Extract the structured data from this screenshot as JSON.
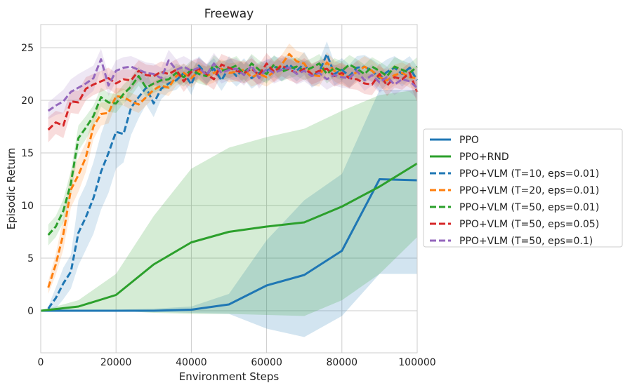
{
  "chart_data": {
    "type": "line",
    "title": "Freeway",
    "xlabel": "Environment Steps",
    "ylabel": "Episodic Return",
    "xlim": [
      0,
      100000
    ],
    "ylim": [
      -4,
      27.2
    ],
    "xticks": [
      0,
      20000,
      40000,
      60000,
      80000,
      100000
    ],
    "xtick_labels": [
      "0",
      "20000",
      "40000",
      "60000",
      "80000",
      "100000"
    ],
    "yticks": [
      0,
      5,
      10,
      15,
      20,
      25
    ],
    "ytick_labels": [
      "0",
      "5",
      "10",
      "15",
      "20",
      "25"
    ],
    "grid": true,
    "legend_position": "right, outside plot",
    "series": [
      {
        "name": "PPO",
        "color": "#1f77b4",
        "dash": "solid",
        "x": [
          0,
          10000,
          20000,
          30000,
          40000,
          50000,
          60000,
          70000,
          80000,
          90000,
          100000
        ],
        "y": [
          0,
          0,
          0,
          0,
          0.1,
          0.6,
          2.4,
          3.4,
          5.7,
          12.5,
          12.4
        ],
        "lower": [
          0,
          0,
          0,
          -0.1,
          -0.2,
          -0.3,
          -1.7,
          -2.5,
          -0.5,
          3.5,
          3.5
        ],
        "upper": [
          0,
          0.1,
          0.1,
          0.2,
          0.4,
          1.6,
          6.7,
          10.5,
          13.0,
          21.0,
          21.0
        ]
      },
      {
        "name": "PPO+RND",
        "color": "#2ca02c",
        "dash": "solid",
        "x": [
          0,
          10000,
          20000,
          30000,
          40000,
          50000,
          60000,
          70000,
          80000,
          90000,
          100000
        ],
        "y": [
          0,
          0.4,
          1.5,
          4.4,
          6.5,
          7.5,
          8.0,
          8.4,
          9.9,
          11.8,
          14.0
        ],
        "lower": [
          0,
          0,
          0,
          -0.2,
          -0.3,
          -0.3,
          -0.4,
          -0.5,
          1.0,
          3.5,
          7.0
        ],
        "upper": [
          0,
          1.0,
          3.5,
          9.0,
          13.5,
          15.5,
          16.5,
          17.3,
          19.0,
          20.5,
          21.0
        ]
      },
      {
        "name": "PPO+VLM (T=10, eps=0.01)",
        "color": "#1f77b4",
        "dash": "dashed",
        "x": [
          2000,
          4000,
          6000,
          8000,
          10000,
          12000,
          14000,
          16000,
          18000,
          20000,
          22000,
          24000,
          26000,
          28000,
          30000,
          32000,
          34000,
          36000,
          38000,
          40000,
          42000,
          44000,
          46000,
          48000,
          50000,
          52000,
          54000,
          56000,
          58000,
          60000,
          62000,
          64000,
          66000,
          68000,
          70000,
          72000,
          74000,
          76000,
          78000,
          80000,
          82000,
          84000,
          86000,
          88000,
          90000,
          92000,
          94000,
          96000,
          98000,
          100000
        ],
        "y": [
          0.2,
          1.2,
          2.6,
          3.7,
          7.4,
          8.9,
          10.7,
          13.2,
          15.0,
          17.0,
          16.8,
          19.3,
          20.3,
          21.2,
          19.7,
          21.1,
          21.6,
          21.9,
          22.6,
          21.5,
          23.3,
          22.5,
          23.0,
          21.9,
          23.1,
          22.3,
          23.0,
          22.1,
          22.6,
          22.8,
          23.2,
          22.9,
          23.4,
          22.8,
          23.5,
          22.3,
          22.7,
          24.4,
          22.5,
          22.9,
          22.3,
          23.1,
          23.2,
          22.8,
          22.1,
          22.7,
          23.1,
          22.5,
          23.1,
          21.9
        ],
        "lower": [
          0.0,
          0.2,
          1.1,
          2.1,
          4.3,
          5.8,
          7.3,
          9.6,
          11.2,
          13.5,
          14.1,
          16.7,
          18.3,
          19.6,
          18.4,
          20.1,
          20.8,
          21.0,
          21.7,
          20.5,
          22.4,
          21.6,
          22.0,
          20.9,
          22.0,
          21.3,
          22.0,
          21.1,
          21.6,
          21.8,
          22.2,
          21.8,
          22.4,
          21.8,
          22.4,
          21.2,
          21.6,
          23.2,
          21.4,
          21.8,
          21.2,
          22.0,
          22.1,
          21.7,
          20.8,
          21.5,
          22.0,
          21.3,
          22.0,
          20.6
        ],
        "upper": [
          0.4,
          2.2,
          4.1,
          5.3,
          10.5,
          12.0,
          14.1,
          16.8,
          18.8,
          20.5,
          19.5,
          21.9,
          22.3,
          22.8,
          21.0,
          22.1,
          22.4,
          22.8,
          23.5,
          22.5,
          24.2,
          23.4,
          24.0,
          22.9,
          24.2,
          23.3,
          24.0,
          23.1,
          23.6,
          23.8,
          24.2,
          24.0,
          24.4,
          23.8,
          24.6,
          23.4,
          23.8,
          25.6,
          23.6,
          24.0,
          23.4,
          24.2,
          24.3,
          23.9,
          23.4,
          23.9,
          24.2,
          23.7,
          24.2,
          23.2
        ]
      },
      {
        "name": "PPO+VLM (T=20, eps=0.01)",
        "color": "#ff7f0e",
        "dash": "dashed",
        "x": [
          2000,
          4000,
          6000,
          8000,
          10000,
          12000,
          14000,
          16000,
          18000,
          20000,
          22000,
          24000,
          26000,
          28000,
          30000,
          32000,
          34000,
          36000,
          38000,
          40000,
          42000,
          44000,
          46000,
          48000,
          50000,
          52000,
          54000,
          56000,
          58000,
          60000,
          62000,
          64000,
          66000,
          68000,
          70000,
          72000,
          74000,
          76000,
          78000,
          80000,
          82000,
          84000,
          86000,
          88000,
          90000,
          92000,
          94000,
          96000,
          98000,
          100000
        ],
        "y": [
          2.2,
          4.4,
          7.3,
          11.5,
          12.9,
          14.6,
          17.5,
          18.7,
          18.8,
          20.4,
          20.3,
          19.9,
          19.6,
          20.3,
          21.0,
          21.4,
          21.2,
          22.3,
          22.6,
          22.1,
          22.8,
          22.3,
          22.6,
          23.0,
          22.6,
          22.7,
          22.9,
          22.2,
          22.5,
          22.2,
          22.7,
          23.4,
          24.4,
          23.7,
          23.5,
          22.4,
          22.3,
          23.6,
          22.8,
          22.4,
          22.2,
          22.7,
          23.2,
          22.8,
          22.2,
          21.9,
          22.4,
          22.6,
          22.2,
          22.1
        ],
        "lower": [
          1.6,
          3.4,
          5.8,
          9.8,
          11.3,
          13.2,
          16.3,
          17.6,
          17.8,
          19.6,
          19.5,
          19.1,
          18.8,
          19.5,
          20.2,
          20.6,
          20.4,
          21.4,
          21.7,
          21.2,
          21.9,
          21.4,
          21.7,
          22.1,
          21.7,
          21.8,
          22.0,
          21.3,
          21.6,
          21.3,
          21.8,
          22.5,
          23.4,
          22.7,
          22.5,
          21.4,
          21.3,
          22.6,
          21.8,
          21.4,
          21.2,
          21.7,
          22.2,
          21.8,
          21.2,
          20.9,
          21.4,
          21.6,
          21.2,
          21.0
        ],
        "upper": [
          2.8,
          5.4,
          8.8,
          13.2,
          14.5,
          16.0,
          18.7,
          19.8,
          19.8,
          21.2,
          21.1,
          20.7,
          20.4,
          21.1,
          21.8,
          22.2,
          22.0,
          23.2,
          23.5,
          23.0,
          23.7,
          23.2,
          23.5,
          23.9,
          23.5,
          23.6,
          23.8,
          23.1,
          23.4,
          23.1,
          23.6,
          24.3,
          25.4,
          24.7,
          24.5,
          23.4,
          23.3,
          24.6,
          23.8,
          23.4,
          23.2,
          23.7,
          24.2,
          23.8,
          23.2,
          22.9,
          23.4,
          23.6,
          23.2,
          23.2
        ]
      },
      {
        "name": "PPO+VLM (T=50, eps=0.01)",
        "color": "#2ca02c",
        "dash": "dashed",
        "x": [
          2000,
          4000,
          6000,
          8000,
          10000,
          12000,
          14000,
          16000,
          18000,
          20000,
          22000,
          24000,
          26000,
          28000,
          30000,
          32000,
          34000,
          36000,
          38000,
          40000,
          42000,
          44000,
          46000,
          48000,
          50000,
          52000,
          54000,
          56000,
          58000,
          60000,
          62000,
          64000,
          66000,
          68000,
          70000,
          72000,
          74000,
          76000,
          78000,
          80000,
          82000,
          84000,
          86000,
          88000,
          90000,
          92000,
          94000,
          96000,
          98000,
          100000
        ],
        "y": [
          7.2,
          8.0,
          9.5,
          12.1,
          16.4,
          17.4,
          18.5,
          20.3,
          19.8,
          19.7,
          20.6,
          21.3,
          22.3,
          21.2,
          21.6,
          21.9,
          22.0,
          22.6,
          22.2,
          22.9,
          22.5,
          22.3,
          23.4,
          22.8,
          23.0,
          23.3,
          22.5,
          23.5,
          22.9,
          22.5,
          23.4,
          22.7,
          23.0,
          23.2,
          22.8,
          23.1,
          23.5,
          22.5,
          23.1,
          22.8,
          23.4,
          23.0,
          22.5,
          23.2,
          22.8,
          22.3,
          23.2,
          22.9,
          22.6,
          23.2
        ],
        "lower": [
          6.2,
          7.0,
          8.4,
          10.9,
          15.2,
          16.3,
          17.5,
          19.4,
          18.9,
          18.8,
          19.7,
          20.4,
          21.4,
          20.3,
          20.7,
          21.0,
          21.1,
          21.7,
          21.3,
          22.0,
          21.6,
          21.4,
          22.5,
          21.9,
          22.1,
          22.4,
          21.6,
          22.6,
          22.0,
          21.6,
          22.5,
          21.8,
          22.1,
          22.3,
          21.9,
          22.2,
          22.6,
          21.6,
          22.2,
          21.9,
          22.5,
          22.1,
          21.6,
          22.3,
          21.9,
          21.4,
          22.3,
          22.0,
          21.7,
          22.3
        ],
        "upper": [
          8.2,
          9.0,
          10.6,
          13.3,
          17.6,
          18.5,
          19.5,
          21.2,
          20.7,
          20.6,
          21.5,
          22.2,
          23.2,
          22.1,
          22.5,
          22.8,
          22.9,
          23.5,
          23.1,
          23.8,
          23.4,
          23.2,
          24.3,
          23.7,
          23.9,
          24.2,
          23.4,
          24.4,
          23.8,
          23.4,
          24.3,
          23.6,
          23.9,
          24.1,
          23.7,
          24.0,
          24.4,
          23.4,
          24.0,
          23.7,
          24.3,
          23.9,
          23.4,
          24.1,
          23.7,
          23.2,
          24.1,
          23.8,
          23.5,
          24.1
        ]
      },
      {
        "name": "PPO+VLM (T=50, eps=0.05)",
        "color": "#d62728",
        "dash": "dashed",
        "x": [
          2000,
          4000,
          6000,
          8000,
          10000,
          12000,
          14000,
          16000,
          18000,
          20000,
          22000,
          24000,
          26000,
          28000,
          30000,
          32000,
          34000,
          36000,
          38000,
          40000,
          42000,
          44000,
          46000,
          48000,
          50000,
          52000,
          54000,
          56000,
          58000,
          60000,
          62000,
          64000,
          66000,
          68000,
          70000,
          72000,
          74000,
          76000,
          78000,
          80000,
          82000,
          84000,
          86000,
          88000,
          90000,
          92000,
          94000,
          96000,
          98000,
          100000
        ],
        "y": [
          17.2,
          17.9,
          17.6,
          19.9,
          19.8,
          21.1,
          21.5,
          21.8,
          22.1,
          21.6,
          22.0,
          21.9,
          22.8,
          22.4,
          22.3,
          22.7,
          22.5,
          22.9,
          21.8,
          22.7,
          23.0,
          22.5,
          22.0,
          23.4,
          23.1,
          22.8,
          22.6,
          23.0,
          22.4,
          23.5,
          22.7,
          23.3,
          22.9,
          22.6,
          23.0,
          22.5,
          22.8,
          23.0,
          22.3,
          22.6,
          22.1,
          22.0,
          21.6,
          21.5,
          22.5,
          21.4,
          22.2,
          22.0,
          22.6,
          20.8
        ],
        "lower": [
          16.0,
          16.8,
          16.4,
          18.8,
          18.7,
          20.0,
          20.5,
          20.8,
          21.1,
          20.6,
          21.0,
          20.9,
          21.8,
          21.4,
          21.3,
          21.7,
          21.5,
          21.9,
          20.8,
          21.7,
          22.0,
          21.5,
          21.0,
          22.4,
          22.1,
          21.8,
          21.6,
          22.0,
          21.4,
          22.5,
          21.7,
          22.3,
          21.9,
          21.6,
          22.0,
          21.5,
          21.8,
          22.0,
          21.3,
          21.6,
          21.1,
          21.0,
          20.6,
          20.5,
          21.5,
          20.4,
          21.2,
          21.0,
          21.6,
          19.8
        ],
        "upper": [
          18.4,
          19.0,
          18.8,
          21.0,
          20.9,
          22.2,
          22.5,
          22.8,
          23.1,
          22.6,
          23.0,
          22.9,
          23.8,
          23.4,
          23.3,
          23.7,
          23.5,
          23.9,
          22.8,
          23.7,
          24.0,
          23.5,
          23.0,
          24.4,
          24.1,
          23.8,
          23.6,
          24.0,
          23.4,
          24.5,
          23.7,
          24.3,
          23.9,
          23.6,
          24.0,
          23.5,
          23.8,
          24.0,
          23.3,
          23.6,
          23.1,
          23.0,
          22.6,
          22.5,
          23.5,
          22.4,
          23.2,
          23.0,
          23.6,
          21.8
        ]
      },
      {
        "name": "PPO+VLM (T=50, eps=0.1)",
        "color": "#9467bd",
        "dash": "dashed",
        "x": [
          2000,
          4000,
          6000,
          8000,
          10000,
          12000,
          14000,
          16000,
          18000,
          20000,
          22000,
          24000,
          26000,
          28000,
          30000,
          32000,
          34000,
          36000,
          38000,
          40000,
          42000,
          44000,
          46000,
          48000,
          50000,
          52000,
          54000,
          56000,
          58000,
          60000,
          62000,
          64000,
          66000,
          68000,
          70000,
          72000,
          74000,
          76000,
          78000,
          80000,
          82000,
          84000,
          86000,
          88000,
          90000,
          92000,
          94000,
          96000,
          98000,
          100000
        ],
        "y": [
          19.0,
          19.5,
          19.9,
          20.8,
          21.2,
          21.6,
          22.1,
          23.9,
          21.4,
          22.8,
          23.1,
          23.2,
          22.9,
          22.6,
          22.5,
          22.1,
          23.8,
          22.9,
          23.2,
          22.8,
          23.1,
          22.4,
          23.5,
          22.6,
          22.9,
          23.0,
          22.4,
          23.3,
          22.1,
          23.0,
          22.6,
          22.9,
          23.1,
          22.5,
          22.8,
          22.3,
          22.6,
          22.0,
          22.4,
          22.2,
          22.1,
          22.8,
          21.9,
          22.4,
          21.7,
          22.2,
          21.5,
          22.0,
          21.8,
          21.2
        ],
        "lower": [
          18.2,
          18.6,
          18.8,
          19.6,
          19.9,
          20.3,
          20.9,
          22.9,
          20.4,
          21.8,
          22.1,
          22.2,
          21.9,
          21.6,
          21.5,
          21.1,
          22.8,
          21.9,
          22.2,
          21.8,
          22.1,
          21.4,
          22.5,
          21.6,
          21.9,
          22.0,
          21.4,
          22.3,
          21.1,
          22.0,
          21.6,
          21.9,
          22.1,
          21.5,
          21.8,
          21.3,
          21.6,
          21.0,
          21.4,
          21.2,
          21.1,
          21.8,
          20.9,
          21.4,
          20.7,
          21.2,
          20.5,
          21.0,
          20.8,
          20.2
        ],
        "upper": [
          19.8,
          20.4,
          21.0,
          22.0,
          22.5,
          22.9,
          23.3,
          24.9,
          22.4,
          23.8,
          24.1,
          24.2,
          23.9,
          23.6,
          23.5,
          23.1,
          24.8,
          23.9,
          24.2,
          23.8,
          24.1,
          23.4,
          24.5,
          23.6,
          23.9,
          24.0,
          23.4,
          24.3,
          23.1,
          24.0,
          23.6,
          23.9,
          24.1,
          23.5,
          23.8,
          23.3,
          23.6,
          23.0,
          23.4,
          23.2,
          23.1,
          23.8,
          22.9,
          23.4,
          22.7,
          23.2,
          22.5,
          23.0,
          22.8,
          22.2
        ]
      }
    ]
  }
}
